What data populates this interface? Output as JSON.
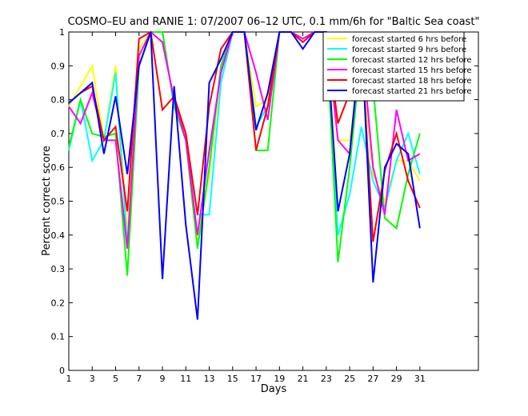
{
  "chart_data": {
    "type": "line",
    "title": "COSMO–EU and RANIE 1: 07/2007 06–12 UTC, 0.1 mm/6h for \"Baltic Sea coast\"",
    "xlabel": "Days",
    "ylabel": "Percent correct score",
    "xlim": [
      1,
      36
    ],
    "ylim": [
      0,
      1
    ],
    "xticks": [
      1,
      3,
      5,
      7,
      9,
      11,
      13,
      15,
      17,
      19,
      21,
      23,
      25,
      27,
      29,
      31
    ],
    "yticks": [
      0,
      0.1,
      0.2,
      0.3,
      0.4,
      0.5,
      0.6,
      0.7,
      0.8,
      0.9,
      1
    ],
    "ytick_labels": [
      "0",
      "0.1",
      "0.2",
      "0.3",
      "0.4",
      "0.5",
      "0.6",
      "0.7",
      "0.8",
      "0.9",
      "1"
    ],
    "legend_position": "top-right",
    "grid": false,
    "x": [
      1,
      2,
      3,
      4,
      5,
      6,
      7,
      8,
      9,
      10,
      11,
      12,
      13,
      14,
      15,
      16,
      17,
      18,
      19,
      20,
      21,
      22,
      23,
      24,
      25,
      26,
      27,
      28,
      29,
      30,
      31
    ],
    "series": [
      {
        "name": "forecast started  6 hrs before",
        "color": "#ffff00",
        "values": [
          0.78,
          0.84,
          0.9,
          0.68,
          0.9,
          0.4,
          0.95,
          1.0,
          1.0,
          0.78,
          0.68,
          0.38,
          0.58,
          0.88,
          1.0,
          1.0,
          0.78,
          0.8,
          1.0,
          1.0,
          0.98,
          1.0,
          1.0,
          0.68,
          0.68,
          0.92,
          0.58,
          0.5,
          0.62,
          0.62,
          0.56
        ]
      },
      {
        "name": "forecast started  9 hrs before",
        "color": "#00ffff",
        "values": [
          0.65,
          0.8,
          0.62,
          0.68,
          0.88,
          0.37,
          0.9,
          1.0,
          1.0,
          0.78,
          0.68,
          0.46,
          0.46,
          0.85,
          1.0,
          1.0,
          0.72,
          0.78,
          1.0,
          1.0,
          0.98,
          1.0,
          1.0,
          0.4,
          0.52,
          0.72,
          0.56,
          0.48,
          0.62,
          0.7,
          0.58
        ]
      },
      {
        "name": "forecast started 12 hrs before",
        "color": "#00ff00",
        "values": [
          0.66,
          0.8,
          0.7,
          0.69,
          0.7,
          0.28,
          0.9,
          1.0,
          1.0,
          0.78,
          0.68,
          0.36,
          0.6,
          0.9,
          1.0,
          1.0,
          0.65,
          0.65,
          1.0,
          1.0,
          0.98,
          1.0,
          1.0,
          0.32,
          0.6,
          0.95,
          0.84,
          0.45,
          0.42,
          0.58,
          0.7
        ]
      },
      {
        "name": "forecast started 15 hrs before",
        "color": "#ff00ff",
        "values": [
          0.78,
          0.73,
          0.82,
          0.68,
          0.68,
          0.36,
          0.93,
          1.0,
          0.97,
          0.8,
          0.68,
          0.4,
          0.65,
          0.88,
          1.0,
          1.0,
          0.88,
          0.74,
          1.0,
          1.0,
          0.98,
          1.0,
          1.0,
          0.68,
          0.64,
          0.98,
          0.6,
          0.46,
          0.77,
          0.62,
          0.64
        ]
      },
      {
        "name": "forecast started 18 hrs before",
        "color": "#ff0000",
        "values": [
          0.79,
          0.82,
          0.84,
          0.68,
          0.72,
          0.47,
          0.98,
          1.0,
          0.77,
          0.81,
          0.7,
          0.46,
          0.78,
          0.95,
          1.0,
          1.0,
          0.65,
          0.78,
          1.0,
          1.0,
          0.97,
          1.0,
          1.0,
          0.73,
          0.82,
          0.96,
          0.38,
          0.59,
          0.7,
          0.56,
          0.48
        ]
      },
      {
        "name": "forecast started 21 hrs before",
        "color": "#0000ff",
        "values": [
          0.79,
          0.82,
          0.85,
          0.64,
          0.81,
          0.58,
          0.9,
          1.0,
          0.27,
          0.84,
          0.43,
          0.15,
          0.85,
          0.92,
          1.0,
          1.0,
          0.71,
          0.82,
          1.0,
          1.0,
          0.95,
          1.0,
          1.0,
          0.47,
          0.64,
          1.0,
          0.26,
          0.6,
          0.67,
          0.64,
          0.42
        ]
      }
    ]
  }
}
